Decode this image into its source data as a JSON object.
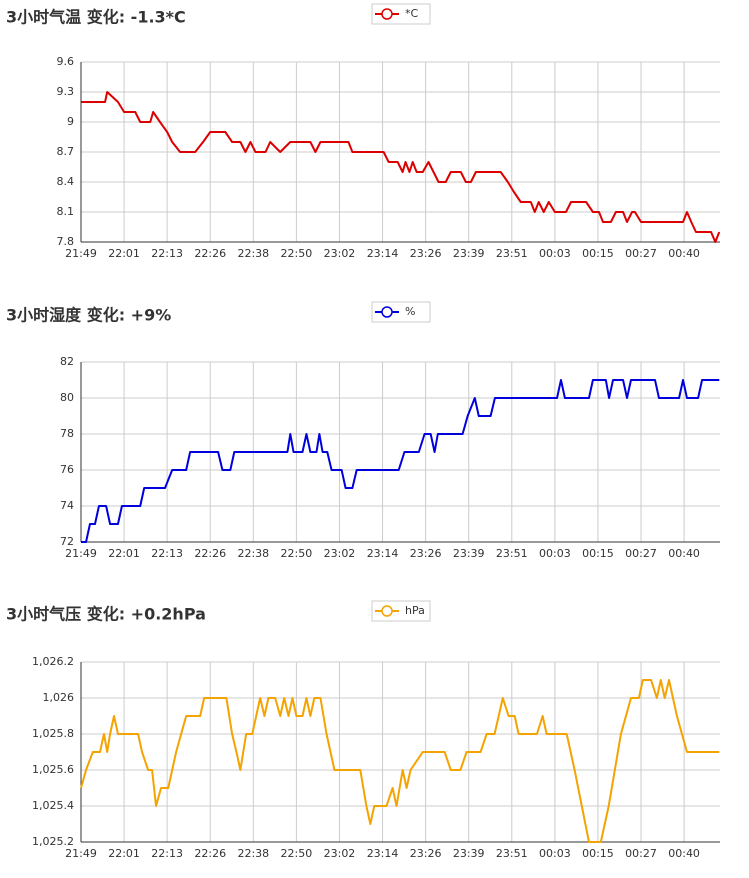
{
  "chart_data": [
    {
      "type": "line",
      "title": "3小时气温  变化: -1.3*C",
      "grid": true,
      "legend": "top",
      "xlim": [
        0,
        178
      ],
      "xticks": [
        {
          "value": 0,
          "label": "21:49"
        },
        {
          "value": 12,
          "label": "22:01"
        },
        {
          "value": 24,
          "label": "22:13"
        },
        {
          "value": 36,
          "label": "22:26"
        },
        {
          "value": 48,
          "label": "22:38"
        },
        {
          "value": 60,
          "label": "22:50"
        },
        {
          "value": 72,
          "label": "23:02"
        },
        {
          "value": 84,
          "label": "23:14"
        },
        {
          "value": 96,
          "label": "23:26"
        },
        {
          "value": 108,
          "label": "23:39"
        },
        {
          "value": 120,
          "label": "23:51"
        },
        {
          "value": 132,
          "label": "00:03"
        },
        {
          "value": 144,
          "label": "00:15"
        },
        {
          "value": 156,
          "label": "00:27"
        },
        {
          "value": 168,
          "label": "00:40"
        }
      ],
      "ylim": [
        7.8,
        9.6
      ],
      "yticks": [
        7.8,
        8.1,
        8.4,
        8.7,
        9,
        9.3,
        9.6
      ],
      "x": [
        0,
        6.7,
        7.3,
        10.3,
        12,
        15.1,
        16.5,
        19.3,
        20.1,
        22,
        24,
        25.4,
        27.6,
        31.8,
        34,
        36,
        40.2,
        42.1,
        44.4,
        45.8,
        47.2,
        48.6,
        51.4,
        52.7,
        55.5,
        58.3,
        63.9,
        65.3,
        66.7,
        74.5,
        75.6,
        84.3,
        85.7,
        88.2,
        89.6,
        90.4,
        91.5,
        92.4,
        93.5,
        95.2,
        96.8,
        98.2,
        99.6,
        101.6,
        103,
        105.8,
        107.2,
        108.6,
        110,
        116.9,
        118.9,
        120.6,
        122.5,
        125.3,
        126.4,
        127.5,
        128.9,
        130.3,
        132,
        135.1,
        136.5,
        140.7,
        142.6,
        144.3,
        145.4,
        147.6,
        149,
        151,
        152.1,
        153.5,
        154.3,
        156,
        167.7,
        168.8,
        170,
        171.3,
        175.5,
        176.7,
        177.8
      ],
      "series": [
        {
          "name": "*C",
          "color": "#dd0000",
          "values": [
            9.2,
            9.2,
            9.3,
            9.2,
            9.1,
            9.1,
            9.0,
            9.0,
            9.1,
            9.0,
            8.9,
            8.8,
            8.7,
            8.7,
            8.8,
            8.9,
            8.9,
            8.8,
            8.8,
            8.7,
            8.8,
            8.7,
            8.7,
            8.8,
            8.7,
            8.8,
            8.8,
            8.7,
            8.8,
            8.8,
            8.7,
            8.7,
            8.6,
            8.6,
            8.5,
            8.6,
            8.5,
            8.6,
            8.5,
            8.5,
            8.6,
            8.5,
            8.4,
            8.4,
            8.5,
            8.5,
            8.4,
            8.4,
            8.5,
            8.5,
            8.4,
            8.3,
            8.2,
            8.2,
            8.1,
            8.2,
            8.1,
            8.2,
            8.1,
            8.1,
            8.2,
            8.2,
            8.1,
            8.1,
            8.0,
            8.0,
            8.1,
            8.1,
            8.0,
            8.1,
            8.1,
            8.0,
            8.0,
            8.1,
            8.0,
            7.9,
            7.9,
            7.8,
            7.9
          ]
        }
      ]
    },
    {
      "type": "line",
      "title": "3小时湿度  变化: +9%",
      "grid": true,
      "legend": "top",
      "xlim": [
        0,
        178
      ],
      "xticks": [
        {
          "value": 0,
          "label": "21:49"
        },
        {
          "value": 12,
          "label": "22:01"
        },
        {
          "value": 24,
          "label": "22:13"
        },
        {
          "value": 36,
          "label": "22:26"
        },
        {
          "value": 48,
          "label": "22:38"
        },
        {
          "value": 60,
          "label": "22:50"
        },
        {
          "value": 72,
          "label": "23:02"
        },
        {
          "value": 84,
          "label": "23:14"
        },
        {
          "value": 96,
          "label": "23:26"
        },
        {
          "value": 108,
          "label": "23:39"
        },
        {
          "value": 120,
          "label": "23:51"
        },
        {
          "value": 132,
          "label": "00:03"
        },
        {
          "value": 144,
          "label": "00:15"
        },
        {
          "value": 156,
          "label": "00:27"
        },
        {
          "value": 168,
          "label": "00:40"
        }
      ],
      "ylim": [
        72,
        82
      ],
      "yticks": [
        72,
        74,
        76,
        78,
        80,
        82
      ],
      "x": [
        0,
        1.4,
        2.5,
        3.9,
        5,
        7,
        8.1,
        10.3,
        11.4,
        16.5,
        17.6,
        23.4,
        25.4,
        29.3,
        30.4,
        38.2,
        39.4,
        41.6,
        42.7,
        57.5,
        58.3,
        59.2,
        61.7,
        62.8,
        63.9,
        65.6,
        66.4,
        67.3,
        68.6,
        69.8,
        72.6,
        73.7,
        75.6,
        76.8,
        88.5,
        90.1,
        94.1,
        95.7,
        97.4,
        98.5,
        99.4,
        106.3,
        107.7,
        109.7,
        110.8,
        114.1,
        115.3,
        132.6,
        133.7,
        134.8,
        141.5,
        142.6,
        146.2,
        147.1,
        148.2,
        151,
        152.1,
        153.2,
        159.9,
        161,
        166.6,
        167.7,
        168.8,
        171.9,
        173,
        177.8
      ],
      "series": [
        {
          "name": "%",
          "color": "#0000dd",
          "values": [
            72,
            72,
            73,
            73,
            74,
            74,
            73,
            73,
            74,
            74,
            75,
            75,
            76,
            76,
            77,
            77,
            76,
            76,
            77,
            77,
            78,
            77,
            77,
            78,
            77,
            77,
            78,
            77,
            77,
            76,
            76,
            75,
            75,
            76,
            76,
            77,
            77,
            78,
            78,
            77,
            78,
            78,
            79,
            80,
            79,
            79,
            80,
            80,
            81,
            80,
            80,
            81,
            81,
            80,
            81,
            81,
            80,
            81,
            81,
            80,
            80,
            81,
            80,
            80,
            81,
            81
          ]
        }
      ]
    },
    {
      "type": "line",
      "title": "3小时气压  变化: +0.2hPa",
      "grid": true,
      "legend": "top",
      "xlim": [
        0,
        178
      ],
      "xticks": [
        {
          "value": 0,
          "label": "21:49"
        },
        {
          "value": 12,
          "label": "22:01"
        },
        {
          "value": 24,
          "label": "22:13"
        },
        {
          "value": 36,
          "label": "22:26"
        },
        {
          "value": 48,
          "label": "22:38"
        },
        {
          "value": 60,
          "label": "22:50"
        },
        {
          "value": 72,
          "label": "23:02"
        },
        {
          "value": 84,
          "label": "23:14"
        },
        {
          "value": 96,
          "label": "23:26"
        },
        {
          "value": 108,
          "label": "23:39"
        },
        {
          "value": 120,
          "label": "23:51"
        },
        {
          "value": 132,
          "label": "00:03"
        },
        {
          "value": 144,
          "label": "00:15"
        },
        {
          "value": 156,
          "label": "00:27"
        },
        {
          "value": 168,
          "label": "00:40"
        }
      ],
      "ylim": [
        1025.2,
        1026.2
      ],
      "yticks": [
        {
          "value": 1025.2,
          "label": "1,025.2"
        },
        {
          "value": 1025.4,
          "label": "1,025.4"
        },
        {
          "value": 1025.6,
          "label": "1,025.6"
        },
        {
          "value": 1025.8,
          "label": "1,025.8"
        },
        {
          "value": 1026,
          "label": "1,026"
        },
        {
          "value": 1026.2,
          "label": "1,026.2"
        }
      ],
      "x": [
        0,
        1.4,
        3.3,
        5.3,
        6.4,
        7.3,
        8.1,
        9.2,
        10.3,
        15.9,
        17,
        18.7,
        19.8,
        20.9,
        22.3,
        24.3,
        26.5,
        27.9,
        29.3,
        33.2,
        34.3,
        40.5,
        42.1,
        43.3,
        44.4,
        46,
        47.7,
        48.8,
        49.9,
        51.1,
        52.2,
        54.1,
        55.5,
        56.6,
        57.8,
        58.9,
        60,
        61.7,
        62.8,
        63.9,
        65,
        66.7,
        68.4,
        70.6,
        77.8,
        79.5,
        80.6,
        81.7,
        85.1,
        86.8,
        87.9,
        89.6,
        90.7,
        91.8,
        95.2,
        101.3,
        103,
        105.7,
        107.4,
        111.3,
        113,
        115.2,
        117.5,
        119.1,
        120.8,
        121.9,
        127,
        128.6,
        129.7,
        135.3,
        137.5,
        141.5,
        144.8,
        147,
        150.4,
        153.2,
        155.4,
        156.5,
        158.8,
        160.4,
        161.5,
        162.6,
        163.8,
        166,
        168.8,
        177.8
      ],
      "series": [
        {
          "name": "hPa",
          "color": "#f5a300",
          "values": [
            1025.5,
            1025.6,
            1025.7,
            1025.7,
            1025.8,
            1025.7,
            1025.8,
            1025.9,
            1025.8,
            1025.8,
            1025.7,
            1025.6,
            1025.6,
            1025.4,
            1025.5,
            1025.5,
            1025.7,
            1025.8,
            1025.9,
            1025.9,
            1026,
            1026,
            1025.8,
            1025.7,
            1025.6,
            1025.8,
            1025.8,
            1025.9,
            1026,
            1025.9,
            1026,
            1026,
            1025.9,
            1026,
            1025.9,
            1026,
            1025.9,
            1025.9,
            1026,
            1025.9,
            1026,
            1026,
            1025.8,
            1025.6,
            1025.6,
            1025.4,
            1025.3,
            1025.4,
            1025.4,
            1025.5,
            1025.4,
            1025.6,
            1025.5,
            1025.6,
            1025.7,
            1025.7,
            1025.6,
            1025.6,
            1025.7,
            1025.7,
            1025.8,
            1025.8,
            1026,
            1025.9,
            1025.9,
            1025.8,
            1025.8,
            1025.9,
            1025.8,
            1025.8,
            1025.6,
            1025.2,
            1025.2,
            1025.4,
            1025.8,
            1026,
            1026,
            1026.1,
            1026.1,
            1026,
            1026.1,
            1026,
            1026.1,
            1025.9,
            1025.7,
            1025.7
          ]
        }
      ]
    }
  ]
}
